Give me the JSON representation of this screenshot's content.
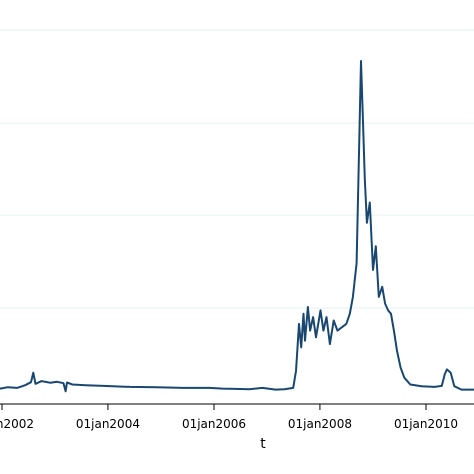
{
  "chart_data": {
    "type": "line",
    "xlabel": "t",
    "ylabel": "",
    "title": "",
    "x_tick_labels": [
      "01jan2002",
      "01jan2004",
      "01jan2006",
      "01jan2008",
      "01jan2010"
    ],
    "x_tick_dates": [
      "2002-01-01",
      "2004-01-01",
      "2006-01-01",
      "2008-01-01",
      "2010-01-01"
    ],
    "x_range": [
      "2001-11-15",
      "2011-04-30"
    ],
    "y_range": [
      0,
      1
    ],
    "grid": true,
    "legend": "none",
    "series": [
      {
        "color": "#1a476f",
        "points": [
          [
            "2001-11-15",
            0.035
          ],
          [
            "2001-12-20",
            0.028
          ],
          [
            "2002-02-10",
            0.032
          ],
          [
            "2002-04-15",
            0.03
          ],
          [
            "2002-06-10",
            0.038
          ],
          [
            "2002-07-20",
            0.047
          ],
          [
            "2002-08-05",
            0.075
          ],
          [
            "2002-08-20",
            0.042
          ],
          [
            "2002-10-01",
            0.05
          ],
          [
            "2002-12-01",
            0.045
          ],
          [
            "2003-01-15",
            0.048
          ],
          [
            "2003-03-01",
            0.044
          ],
          [
            "2003-03-15",
            0.02
          ],
          [
            "2003-03-25",
            0.046
          ],
          [
            "2003-05-01",
            0.04
          ],
          [
            "2003-08-01",
            0.038
          ],
          [
            "2003-12-01",
            0.036
          ],
          [
            "2004-06-01",
            0.033
          ],
          [
            "2004-12-01",
            0.032
          ],
          [
            "2005-06-01",
            0.03
          ],
          [
            "2005-12-01",
            0.03
          ],
          [
            "2006-03-01",
            0.028
          ],
          [
            "2006-06-01",
            0.027
          ],
          [
            "2006-09-01",
            0.026
          ],
          [
            "2006-12-01",
            0.03
          ],
          [
            "2007-03-01",
            0.025
          ],
          [
            "2007-05-01",
            0.026
          ],
          [
            "2007-07-01",
            0.03
          ],
          [
            "2007-07-20",
            0.08
          ],
          [
            "2007-08-10",
            0.22
          ],
          [
            "2007-08-25",
            0.15
          ],
          [
            "2007-09-10",
            0.25
          ],
          [
            "2007-09-20",
            0.17
          ],
          [
            "2007-10-10",
            0.27
          ],
          [
            "2007-10-25",
            0.2
          ],
          [
            "2007-11-15",
            0.24
          ],
          [
            "2007-12-05",
            0.18
          ],
          [
            "2008-01-05",
            0.26
          ],
          [
            "2008-01-25",
            0.2
          ],
          [
            "2008-02-15",
            0.24
          ],
          [
            "2008-03-10",
            0.16
          ],
          [
            "2008-04-05",
            0.23
          ],
          [
            "2008-05-01",
            0.2
          ],
          [
            "2008-06-01",
            0.21
          ],
          [
            "2008-07-01",
            0.22
          ],
          [
            "2008-07-25",
            0.25
          ],
          [
            "2008-08-15",
            0.3
          ],
          [
            "2008-09-10",
            0.4
          ],
          [
            "2008-09-25",
            0.7
          ],
          [
            "2008-10-10",
            1.0
          ],
          [
            "2008-10-25",
            0.8
          ],
          [
            "2008-11-05",
            0.65
          ],
          [
            "2008-11-20",
            0.52
          ],
          [
            "2008-12-10",
            0.58
          ],
          [
            "2009-01-01",
            0.38
          ],
          [
            "2009-01-20",
            0.45
          ],
          [
            "2009-02-10",
            0.3
          ],
          [
            "2009-03-05",
            0.33
          ],
          [
            "2009-03-25",
            0.28
          ],
          [
            "2009-04-15",
            0.26
          ],
          [
            "2009-05-05",
            0.25
          ],
          [
            "2009-05-25",
            0.2
          ],
          [
            "2009-06-15",
            0.14
          ],
          [
            "2009-07-10",
            0.09
          ],
          [
            "2009-08-05",
            0.06
          ],
          [
            "2009-09-15",
            0.04
          ],
          [
            "2009-12-01",
            0.035
          ],
          [
            "2010-03-01",
            0.033
          ],
          [
            "2010-04-20",
            0.036
          ],
          [
            "2010-05-10",
            0.07
          ],
          [
            "2010-05-25",
            0.085
          ],
          [
            "2010-06-20",
            0.075
          ],
          [
            "2010-07-15",
            0.035
          ],
          [
            "2010-09-01",
            0.025
          ],
          [
            "2010-12-01",
            0.025
          ],
          [
            "2011-03-01",
            0.024
          ],
          [
            "2011-04-30",
            0.024
          ]
        ]
      }
    ]
  }
}
